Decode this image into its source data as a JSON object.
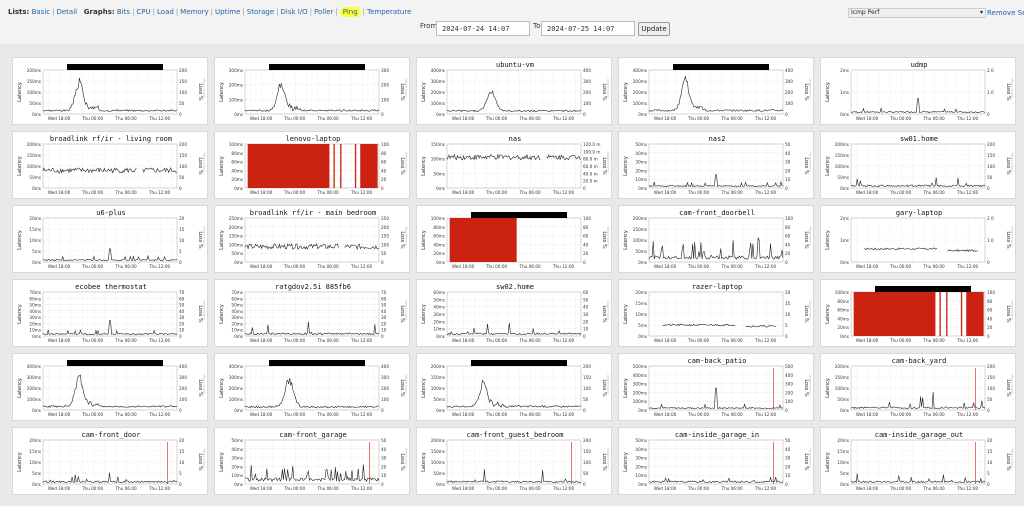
{
  "nav": {
    "lists_label": "Lists:",
    "lists": [
      "Basic",
      "Detail"
    ],
    "graphs_label": "Graphs:",
    "graphs": [
      "Bits",
      "CPU",
      "Load",
      "Memory",
      "Uptime",
      "Storage",
      "Disk I/O",
      "Poller",
      "Ping",
      "Temperature"
    ],
    "active_graph": "Ping"
  },
  "selector": {
    "value": "Icmp Perf"
  },
  "remove_link": "Remove Sea",
  "range": {
    "from_label": "From",
    "from_value": "2024-07-24 14:07",
    "to_label": "To",
    "to_value": "2024-07-25 14:07",
    "update_label": "Update"
  },
  "colors": {
    "line": "#222222",
    "loss": "#cc2211",
    "grid": "#dddddd",
    "grid_minor": "#f0c8c8",
    "border": "#d8d8d8"
  },
  "axis_common": {
    "y_left_label": "Latency",
    "y_right_label": "Loss %",
    "x_ticks": [
      "Wed 18:00",
      "Thu 00:00",
      "Thu 06:00",
      "Thu 12:00"
    ],
    "side_tag": "Observium"
  },
  "graphs": [
    {
      "title": "",
      "redacted": true,
      "yticks": [
        "200ms",
        "150ms",
        "100ms",
        "50ms",
        "0ms"
      ],
      "rticks": [
        "200",
        "150",
        "100",
        "50",
        "0"
      ],
      "profile": "spike-early",
      "peak": 0.75
    },
    {
      "title": "",
      "redacted": true,
      "yticks": [
        "300ms",
        "200ms",
        "100ms",
        "0ms"
      ],
      "rticks": [
        "300",
        "200",
        "100",
        "0"
      ],
      "profile": "spike-early",
      "peak": 0.7
    },
    {
      "title": "ubuntu-vm",
      "redacted": false,
      "yticks": [
        "400ms",
        "300ms",
        "200ms",
        "100ms",
        "0ms"
      ],
      "rticks": [
        "400",
        "300",
        "200",
        "100",
        "0"
      ],
      "profile": "spike-mid",
      "peak": 0.55
    },
    {
      "title": "",
      "redacted": true,
      "yticks": [
        "400ms",
        "300ms",
        "200ms",
        "100ms",
        "0ms"
      ],
      "rticks": [
        "400",
        "300",
        "200",
        "100",
        "0"
      ],
      "profile": "spike-early",
      "peak": 0.85
    },
    {
      "title": "udmp",
      "redacted": false,
      "yticks": [
        "2ms",
        "1ms",
        "0ms"
      ],
      "rticks": [
        "2.0",
        "1.0",
        "0"
      ],
      "profile": "flat-spike",
      "peak": 0.35
    },
    {
      "title": "broadlink rf/ir - living room",
      "redacted": false,
      "yticks": [
        "200ms",
        "150ms",
        "100ms",
        "50ms",
        "0ms"
      ],
      "rticks": [
        "200",
        "150",
        "100",
        "50",
        "0"
      ],
      "profile": "noisy-high",
      "peak": 0.4
    },
    {
      "title": "lenovo-laptop",
      "redacted": false,
      "yticks": [
        "100ms",
        "80ms",
        "60ms",
        "40ms",
        "20ms",
        "0ms"
      ],
      "rticks": [
        "100",
        "80",
        "60",
        "40",
        "20",
        "0"
      ],
      "profile": "loss-block",
      "peak": 1.0
    },
    {
      "title": "nas",
      "redacted": false,
      "yticks": [
        "150ms",
        "100ms",
        "50ms",
        "0ms"
      ],
      "rticks": [
        "120.0 m",
        "100.0 m",
        "80.0 m",
        "60.0 m",
        "40.0 m",
        "20.0 m",
        "0"
      ],
      "profile": "noisy-high",
      "peak": 0.7
    },
    {
      "title": "nas2",
      "redacted": false,
      "yticks": [
        "50ms",
        "40ms",
        "30ms",
        "20ms",
        "10ms",
        "0ms"
      ],
      "rticks": [
        "50",
        "40",
        "30",
        "20",
        "10",
        "0"
      ],
      "profile": "flat-spike",
      "peak": 0.3
    },
    {
      "title": "sw01.home",
      "redacted": false,
      "yticks": [
        "200ms",
        "150ms",
        "100ms",
        "50ms",
        "0ms"
      ],
      "rticks": [
        "200",
        "150",
        "100",
        "50",
        "0"
      ],
      "profile": "low-noise",
      "peak": 0.2
    },
    {
      "title": "u6-plus",
      "redacted": false,
      "yticks": [
        "20ms",
        "15ms",
        "10ms",
        "5ms",
        "0ms"
      ],
      "rticks": [
        "20",
        "15",
        "10",
        "5",
        "0"
      ],
      "profile": "flat-spike",
      "peak": 0.3
    },
    {
      "title": "broadlink rf/ir - main bedroom",
      "redacted": false,
      "yticks": [
        "250ms",
        "200ms",
        "150ms",
        "100ms",
        "50ms",
        "0ms"
      ],
      "rticks": [
        "250",
        "200",
        "150",
        "100",
        "50",
        "0"
      ],
      "profile": "noisy-high",
      "peak": 0.35
    },
    {
      "title": "",
      "redacted": true,
      "yticks": [
        "100ms",
        "80ms",
        "60ms",
        "40ms",
        "20ms",
        "0ms"
      ],
      "rticks": [
        "100",
        "80",
        "60",
        "40",
        "20",
        "0"
      ],
      "profile": "loss-left",
      "peak": 1.0
    },
    {
      "title": "cam-front_doorbell",
      "redacted": false,
      "yticks": [
        "200ms",
        "150ms",
        "100ms",
        "50ms",
        "0ms"
      ],
      "rticks": [
        "100",
        "80",
        "60",
        "40",
        "20",
        "0"
      ],
      "profile": "spiky",
      "peak": 0.45
    },
    {
      "title": "gary-laptop",
      "redacted": false,
      "yticks": [
        "2ms",
        "1ms",
        "0ms"
      ],
      "rticks": [
        "2.0",
        "1.0",
        "0"
      ],
      "profile": "mid-flat",
      "peak": 0.3
    },
    {
      "title": "ecobee thermostat",
      "redacted": false,
      "yticks": [
        "70ms",
        "60ms",
        "50ms",
        "40ms",
        "30ms",
        "20ms",
        "10ms",
        "0ms"
      ],
      "rticks": [
        "70",
        "60",
        "50",
        "40",
        "30",
        "20",
        "10",
        "0"
      ],
      "profile": "flat-spike",
      "peak": 0.35
    },
    {
      "title": "ratgdov2.5i 885fb6",
      "redacted": false,
      "yticks": [
        "70ms",
        "60ms",
        "50ms",
        "40ms",
        "30ms",
        "20ms",
        "10ms",
        "0ms"
      ],
      "rticks": [
        "70",
        "60",
        "50",
        "40",
        "30",
        "20",
        "10",
        "0"
      ],
      "profile": "low-noise",
      "peak": 0.3
    },
    {
      "title": "sw02.home",
      "redacted": false,
      "yticks": [
        "60ms",
        "50ms",
        "40ms",
        "30ms",
        "20ms",
        "10ms",
        "0ms"
      ],
      "rticks": [
        "60",
        "50",
        "40",
        "30",
        "20",
        "10",
        "0"
      ],
      "profile": "low-noise",
      "peak": 0.25
    },
    {
      "title": "razer-laptop",
      "redacted": false,
      "yticks": [
        "20ms",
        "15ms",
        "10ms",
        "5ms",
        "0ms"
      ],
      "rticks": [
        "20",
        "15",
        "10",
        "5",
        "0"
      ],
      "profile": "mid-flat",
      "peak": 0.25
    },
    {
      "title": "",
      "redacted": true,
      "yticks": [
        "100ms",
        "80ms",
        "60ms",
        "40ms",
        "20ms",
        "0ms"
      ],
      "rticks": [
        "100",
        "80",
        "60",
        "40",
        "20",
        "0"
      ],
      "profile": "loss-block",
      "peak": 1.0
    },
    {
      "title": "",
      "redacted": true,
      "yticks": [
        "400ms",
        "300ms",
        "200ms",
        "100ms",
        "0ms"
      ],
      "rticks": [
        "400",
        "300",
        "200",
        "100",
        "0"
      ],
      "profile": "spike-early",
      "peak": 0.8
    },
    {
      "title": "",
      "redacted": true,
      "yticks": [
        "400ms",
        "300ms",
        "200ms",
        "100ms",
        "0ms"
      ],
      "rticks": [
        "400",
        "300",
        "200",
        "100",
        "0"
      ],
      "profile": "spike-mid",
      "peak": 0.7
    },
    {
      "title": "",
      "redacted": true,
      "yticks": [
        "200ms",
        "150ms",
        "100ms",
        "50ms",
        "0ms"
      ],
      "rticks": [
        "200",
        "150",
        "100",
        "50",
        "0"
      ],
      "profile": "spike-early",
      "peak": 0.6
    },
    {
      "title": "cam-back_patio",
      "redacted": false,
      "yticks": [
        "500ms",
        "400ms",
        "300ms",
        "200ms",
        "100ms",
        "0ms"
      ],
      "rticks": [
        "500",
        "400",
        "300",
        "200",
        "100",
        "0"
      ],
      "profile": "flat-spike",
      "peak": 0.5
    },
    {
      "title": "cam-back_yard",
      "redacted": false,
      "yticks": [
        "200ms",
        "150ms",
        "100ms",
        "50ms",
        "0ms"
      ],
      "rticks": [
        "200",
        "150",
        "100",
        "50",
        "0"
      ],
      "profile": "low-noise",
      "peak": 0.35
    },
    {
      "title": "cam-front_door",
      "redacted": false,
      "yticks": [
        "20ms",
        "15ms",
        "10ms",
        "5ms",
        "0ms"
      ],
      "rticks": [
        "20",
        "15",
        "10",
        "5",
        "0"
      ],
      "profile": "low-noise",
      "peak": 0.25
    },
    {
      "title": "cam-front_garage",
      "redacted": false,
      "yticks": [
        "50ms",
        "40ms",
        "30ms",
        "20ms",
        "10ms",
        "0ms"
      ],
      "rticks": [
        "50",
        "40",
        "30",
        "20",
        "10",
        "0"
      ],
      "profile": "spiky",
      "peak": 0.35
    },
    {
      "title": "cam-front_guest_bedroom",
      "redacted": false,
      "yticks": [
        "200ms",
        "150ms",
        "100ms",
        "50ms",
        "0ms"
      ],
      "rticks": [
        "200",
        "150",
        "100",
        "50",
        "0"
      ],
      "profile": "low-noise",
      "peak": 0.3
    },
    {
      "title": "cam-inside_garage_in",
      "redacted": false,
      "yticks": [
        "50ms",
        "40ms",
        "30ms",
        "20ms",
        "10ms",
        "0ms"
      ],
      "rticks": [
        "50",
        "40",
        "30",
        "20",
        "10",
        "0"
      ],
      "profile": "low-noise",
      "peak": 0.25
    },
    {
      "title": "cam-inside_garage_out",
      "redacted": false,
      "yticks": [
        "20ms",
        "15ms",
        "10ms",
        "5ms",
        "0ms"
      ],
      "rticks": [
        "20",
        "15",
        "10",
        "5",
        "0"
      ],
      "profile": "low-noise",
      "peak": 0.2
    }
  ]
}
